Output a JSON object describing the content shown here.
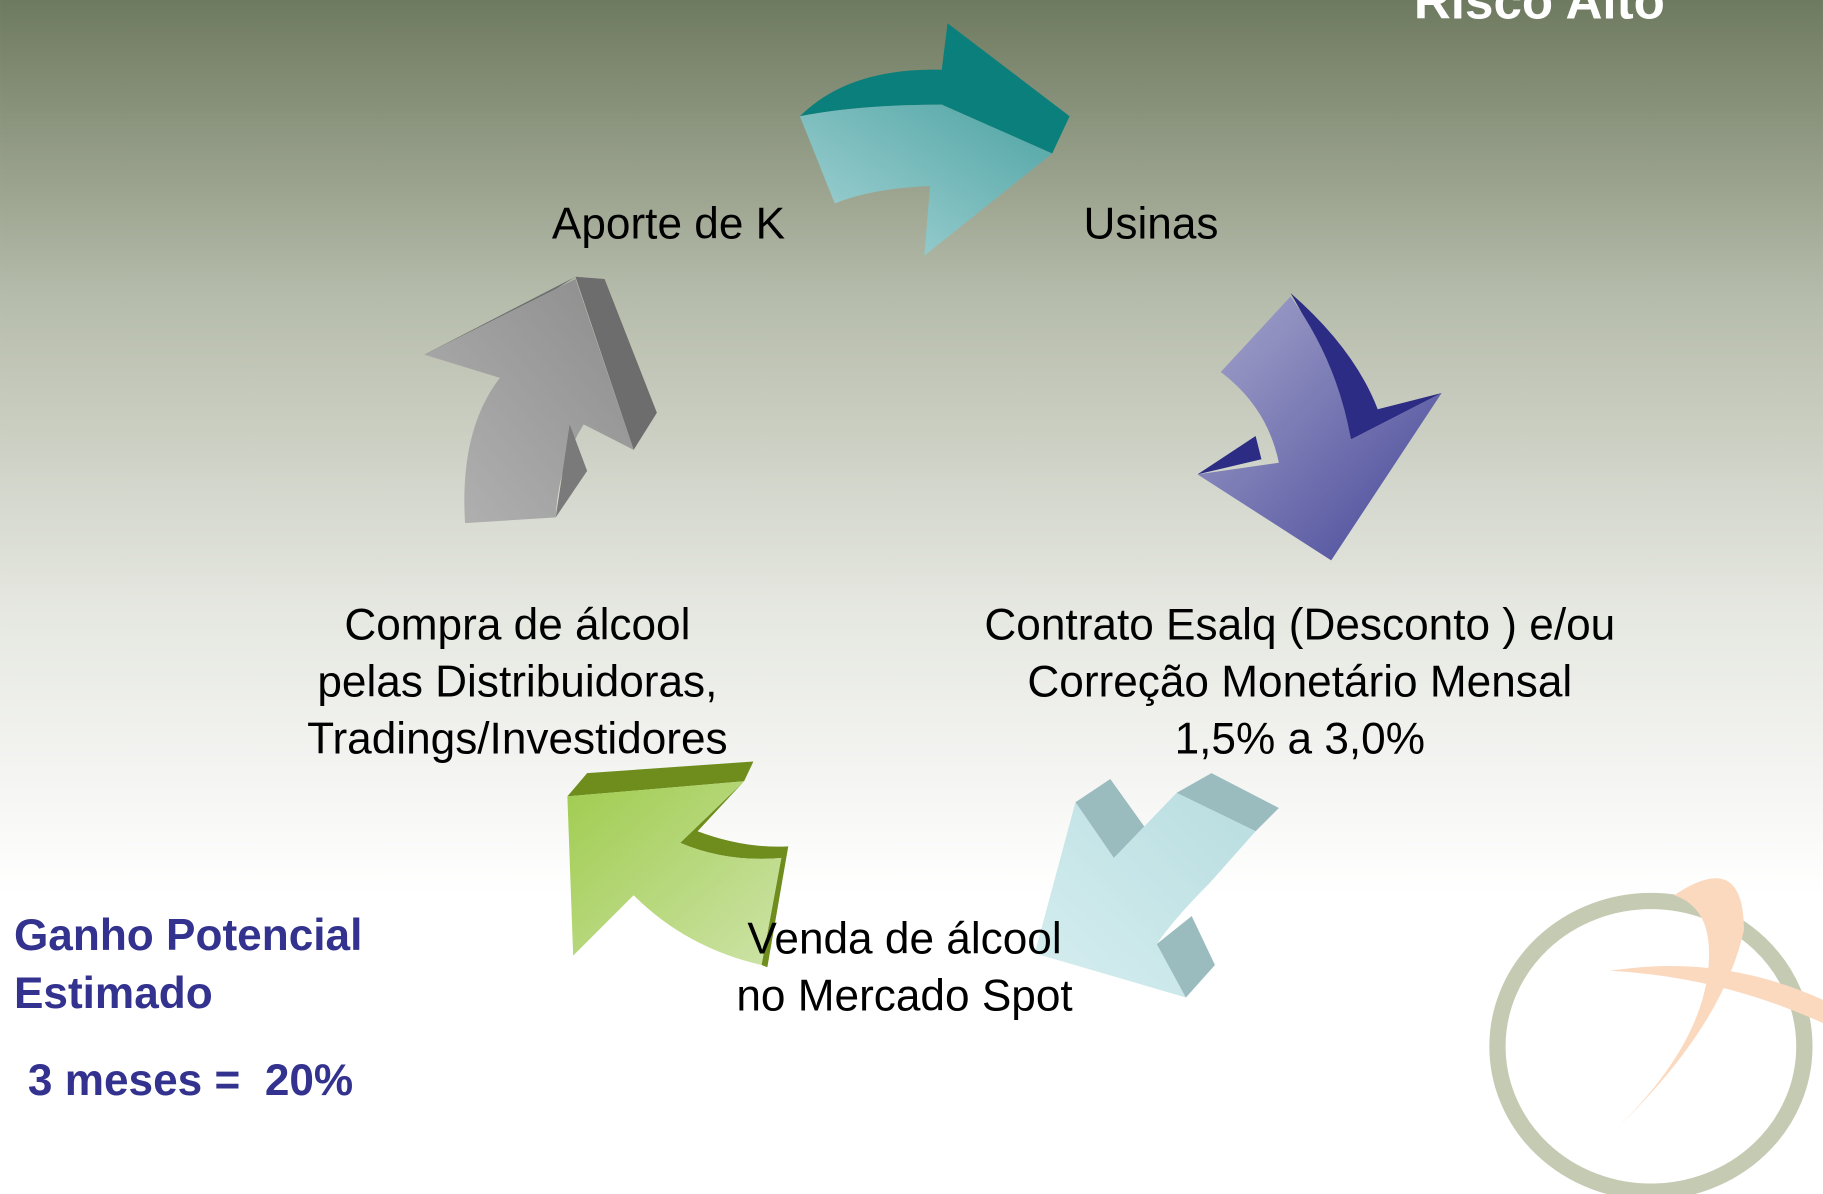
{
  "header": {
    "title": "Risco Alto"
  },
  "nodes": [
    {
      "lines": [
        "Aporte de K"
      ]
    },
    {
      "lines": [
        "Usinas"
      ]
    },
    {
      "lines": [
        "Contrato Esalq (Desconto ) e/ou",
        "Correção Monetário Mensal",
        "1,5% a 3,0%"
      ]
    },
    {
      "lines": [
        "Venda de álcool",
        "no Mercado Spot"
      ]
    },
    {
      "lines": [
        "Compra de álcool",
        "pelas Distribuidoras,",
        "Tradings/Investidores"
      ]
    }
  ],
  "summary": {
    "lines": [
      "Ganho Potencial",
      "Estimado"
    ],
    "result": "3 meses =  20%"
  }
}
